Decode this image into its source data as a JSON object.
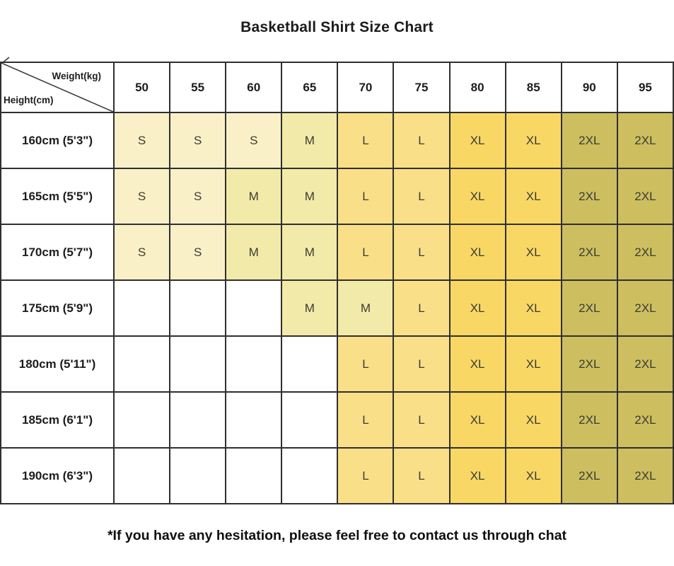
{
  "title": "Basketball Shirt Size Chart",
  "corner": {
    "weight_label": "Weight(kg)",
    "height_label": "Height(cm)"
  },
  "footer_note": "*If you have any hesitation, please feel free to contact us through chat",
  "size_colors": {
    "S": "#F9F0C8",
    "M": "#F2EAA8",
    "L": "#FADF89",
    "XL": "#F8D765",
    "2XL": "#CDBE60",
    "empty": "#FFFFFF"
  },
  "line_colors": {
    "grid_border": "#2F2F2F",
    "diagonal": "#3A3A3A"
  },
  "chart_data": {
    "type": "table",
    "title": "Basketball Shirt Size Chart",
    "column_header_label": "Weight(kg)",
    "row_header_label": "Height(cm)",
    "columns": [
      "50",
      "55",
      "60",
      "65",
      "70",
      "75",
      "80",
      "85",
      "90",
      "95"
    ],
    "rows": [
      {
        "label": "160cm (5'3\")",
        "values": [
          "S",
          "S",
          "S",
          "M",
          "L",
          "L",
          "XL",
          "XL",
          "2XL",
          "2XL"
        ]
      },
      {
        "label": "165cm (5'5\")",
        "values": [
          "S",
          "S",
          "M",
          "M",
          "L",
          "L",
          "XL",
          "XL",
          "2XL",
          "2XL"
        ]
      },
      {
        "label": "170cm (5'7\")",
        "values": [
          "S",
          "S",
          "M",
          "M",
          "L",
          "L",
          "XL",
          "XL",
          "2XL",
          "2XL"
        ]
      },
      {
        "label": "175cm (5'9\")",
        "values": [
          "",
          "",
          "",
          "M",
          "M",
          "L",
          "XL",
          "XL",
          "2XL",
          "2XL"
        ]
      },
      {
        "label": "180cm (5'11\")",
        "values": [
          "",
          "",
          "",
          "",
          "L",
          "L",
          "XL",
          "XL",
          "2XL",
          "2XL"
        ]
      },
      {
        "label": "185cm (6'1\")",
        "values": [
          "",
          "",
          "",
          "",
          "L",
          "L",
          "XL",
          "XL",
          "2XL",
          "2XL"
        ]
      },
      {
        "label": "190cm (6'3\")",
        "values": [
          "",
          "",
          "",
          "",
          "L",
          "L",
          "XL",
          "XL",
          "2XL",
          "2XL"
        ]
      }
    ],
    "sizes_legend": [
      "S",
      "M",
      "L",
      "XL",
      "2XL"
    ],
    "footnote": "*If you have any hesitation, please feel free to contact us through chat"
  }
}
